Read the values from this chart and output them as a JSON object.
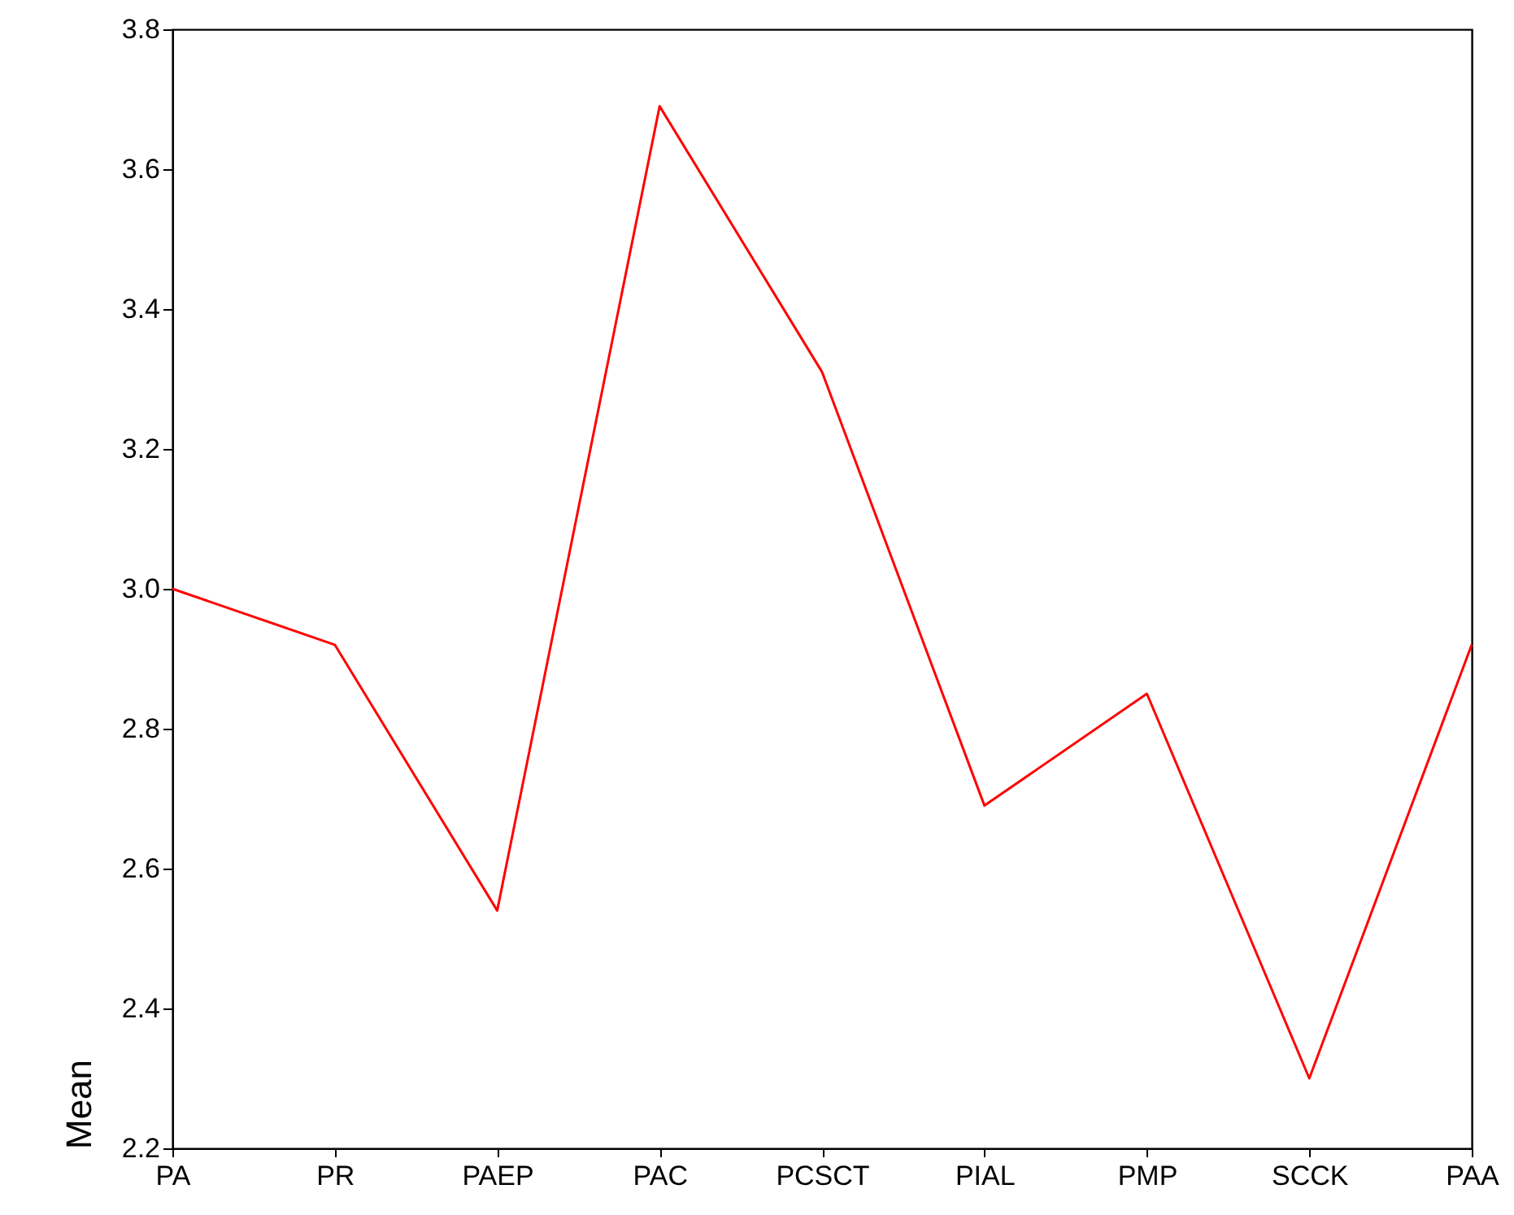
{
  "chart_data": {
    "type": "line",
    "ylabel": "Mean",
    "categories": [
      "PA",
      "PR",
      "PAEP",
      "PAC",
      "PCSCT",
      "PIAL",
      "PMP",
      "SCCK",
      "PAA"
    ],
    "series": [
      {
        "color": "#ff0000",
        "values": [
          3.0,
          2.92,
          2.54,
          3.69,
          3.31,
          2.69,
          2.85,
          2.3,
          2.92
        ]
      }
    ],
    "ylim": [
      2.2,
      3.8
    ],
    "yticks": [
      {
        "value": 2.2,
        "label": "2.2"
      },
      {
        "value": 2.4,
        "label": "2.4"
      },
      {
        "value": 2.6,
        "label": "2.6"
      },
      {
        "value": 2.8,
        "label": "2.8"
      },
      {
        "value": 3.0,
        "label": "3.0"
      },
      {
        "value": 3.2,
        "label": "3.2"
      },
      {
        "value": 3.4,
        "label": "3.4"
      },
      {
        "value": 3.6,
        "label": "3.6"
      },
      {
        "value": 3.8,
        "label": "3.8"
      }
    ],
    "grid": false,
    "marker": "none",
    "line_style": "solid"
  }
}
